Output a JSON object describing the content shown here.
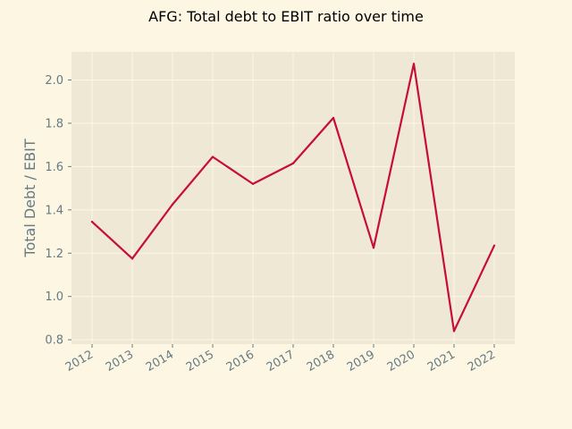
{
  "chart_data": {
    "type": "line",
    "title": "AFG: Total debt to EBIT ratio over time",
    "xlabel": "",
    "ylabel": "Total Debt / EBIT",
    "x": [
      "2012",
      "2013",
      "2014",
      "2015",
      "2016",
      "2017",
      "2018",
      "2019",
      "2020",
      "2021",
      "2022"
    ],
    "series": [
      {
        "values": [
          1.345,
          1.175,
          1.425,
          1.645,
          1.52,
          1.615,
          1.825,
          1.225,
          2.075,
          0.84,
          1.235
        ],
        "color": "#c70d3a"
      }
    ],
    "ylim": [
      0.78,
      2.13
    ],
    "yticks": [
      0.8,
      1.0,
      1.2,
      1.4,
      1.6,
      1.8,
      2.0
    ],
    "ytick_labels": [
      "0.8",
      "1.0",
      "1.2",
      "1.4",
      "1.6",
      "1.8",
      "2.0"
    ],
    "grid": true,
    "colors": {
      "figure_background": "#fdf6e3",
      "plot_background": "#eee8d5",
      "grid": "#fdf6e3",
      "tick_text": "#657b83"
    }
  }
}
